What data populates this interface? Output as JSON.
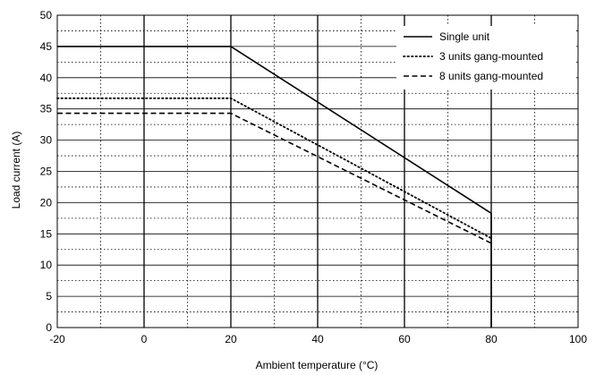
{
  "chart_data": {
    "type": "line",
    "title": "",
    "xlabel": "Ambient temperature (°C)",
    "ylabel": "Load current (A)",
    "xlim": [
      -20,
      100
    ],
    "ylim": [
      0,
      50
    ],
    "x_ticks": [
      "-20",
      "0",
      "20",
      "40",
      "60",
      "80",
      "100"
    ],
    "y_ticks": [
      "0",
      "5",
      "10",
      "15",
      "20",
      "25",
      "30",
      "35",
      "40",
      "45",
      "50"
    ],
    "grid": true,
    "legend_position": "top-right",
    "series": [
      {
        "name": "Single unit",
        "style": "solid",
        "x": [
          -20,
          20,
          80,
          80
        ],
        "y": [
          45,
          45,
          18.3,
          0
        ]
      },
      {
        "name": "3 units gang-mounted",
        "style": "dotted",
        "x": [
          -20,
          20,
          80
        ],
        "y": [
          36.7,
          36.7,
          14.3
        ]
      },
      {
        "name": "8 units gang-mounted",
        "style": "dashed",
        "x": [
          -20,
          20,
          80
        ],
        "y": [
          34.3,
          34.3,
          13.5
        ]
      }
    ]
  }
}
